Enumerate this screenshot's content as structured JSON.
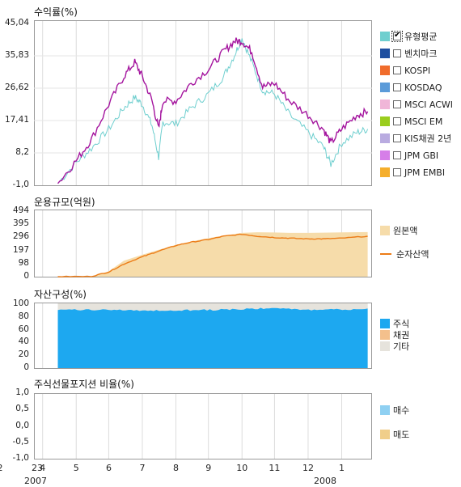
{
  "panels": {
    "returns": {
      "title": "수익률(%)"
    },
    "fund_size": {
      "title": "운용규모(억원)"
    },
    "asset": {
      "title": "자산구성(%)"
    },
    "futures": {
      "title": "주식선물포지션 비율(%)"
    }
  },
  "legend_returns": [
    {
      "label": "유형평균",
      "color": "#6fcfcf",
      "checked": true
    },
    {
      "label": "벤치마크",
      "color": "#1e4fa0",
      "checked": false
    },
    {
      "label": "KOSPI",
      "color": "#f06c2c",
      "checked": false
    },
    {
      "label": "KOSDAQ",
      "color": "#5b9bd9",
      "checked": false
    },
    {
      "label": "MSCI ACWI",
      "color": "#f0b6d8",
      "checked": false
    },
    {
      "label": "MSCI EM",
      "color": "#9acd1e",
      "checked": false
    },
    {
      "label": "KIS채권 2년",
      "color": "#b9abe0",
      "checked": false
    },
    {
      "label": "JPM GBI",
      "color": "#d67ee8",
      "checked": false
    },
    {
      "label": "JPM EMBI",
      "color": "#f5ae2c",
      "checked": false
    }
  ],
  "legend_size": [
    {
      "label": "원본액",
      "color": "#f6dcaa",
      "kind": "swatch"
    },
    {
      "label": "순자산액",
      "color": "#ec7c17",
      "kind": "line"
    }
  ],
  "legend_asset": [
    {
      "label": "주식",
      "color": "#1da8f0"
    },
    {
      "label": "채권",
      "color": "#f4c08c"
    },
    {
      "label": "기타",
      "color": "#e6e3dc"
    }
  ],
  "legend_futures": [
    {
      "label": "매수",
      "color": "#8fd0f2"
    },
    {
      "label": "매도",
      "color": "#f0ce8a"
    }
  ],
  "x_axis": {
    "ticks": [
      "23",
      "4",
      "5",
      "6",
      "7",
      "8",
      "9",
      "10",
      "11",
      "12",
      "1",
      "2"
    ],
    "years": [
      "2007",
      "2008"
    ]
  },
  "chart_data": [
    {
      "type": "line",
      "title": "수익률(%)",
      "y_ticks": [
        "45,04",
        "35,83",
        "26,62",
        "17,41",
        "8,2",
        "-1,0"
      ],
      "ylim": [
        -1.0,
        45.04
      ],
      "x": [
        "2007-05-15",
        "2007-06-01",
        "2007-06-15",
        "2007-07-01",
        "2007-07-15",
        "2007-07-25",
        "2007-08-01",
        "2007-08-10",
        "2007-08-16",
        "2007-08-20",
        "2007-09-01",
        "2007-09-15",
        "2007-10-01",
        "2007-10-15",
        "2007-10-25",
        "2007-11-01",
        "2007-11-10",
        "2007-11-20",
        "2007-12-01",
        "2007-12-15",
        "2008-01-01",
        "2008-01-15",
        "2008-01-22",
        "2008-02-01",
        "2008-02-15",
        "2008-02-25"
      ],
      "series": [
        {
          "name": "유형평균",
          "color": "#6fcfcf",
          "values": [
            -0.5,
            5.5,
            9.5,
            15.0,
            21.0,
            24.0,
            22.0,
            16.0,
            7.0,
            17.0,
            16.5,
            21.0,
            25.0,
            30.0,
            36.0,
            41.0,
            34.0,
            26.0,
            25.0,
            19.0,
            14.0,
            10.0,
            5.0,
            11.0,
            14.0,
            15.0
          ]
        },
        {
          "name": "",
          "color": "#a4149e",
          "values": [
            -0.5,
            6.0,
            12.0,
            22.0,
            30.0,
            34.0,
            30.0,
            23.0,
            15.0,
            23.0,
            23.0,
            28.0,
            32.0,
            37.0,
            40.0,
            40.0,
            37.0,
            27.0,
            28.0,
            23.0,
            19.0,
            15.0,
            11.0,
            15.0,
            19.0,
            20.0
          ]
        }
      ]
    },
    {
      "type": "area",
      "title": "운용규모(억원)",
      "y_ticks": [
        "494",
        "395",
        "296",
        "197",
        "98",
        "0"
      ],
      "ylim": [
        0,
        494
      ],
      "x": [
        "2007-05-15",
        "2007-06-15",
        "2007-07-01",
        "2007-07-15",
        "2007-08-01",
        "2007-08-15",
        "2007-09-01",
        "2007-09-15",
        "2007-10-01",
        "2007-10-15",
        "2007-11-01",
        "2007-11-15",
        "2007-12-01",
        "2007-12-15",
        "2008-01-01",
        "2008-01-15",
        "2008-02-01",
        "2008-02-25"
      ],
      "series": [
        {
          "name": "원본액",
          "color": "#f6dcaa",
          "values": [
            0,
            2,
            40,
            120,
            165,
            200,
            240,
            265,
            290,
            310,
            330,
            335,
            333,
            330,
            330,
            332,
            334,
            336
          ]
        },
        {
          "name": "순자산액",
          "color": "#ec7c17",
          "values": [
            0,
            2,
            35,
            95,
            150,
            190,
            235,
            260,
            280,
            305,
            320,
            305,
            295,
            290,
            285,
            285,
            290,
            305
          ]
        }
      ]
    },
    {
      "type": "bar",
      "title": "자산구성(%)",
      "y_ticks": [
        "100",
        "80",
        "60",
        "40",
        "20",
        "0"
      ],
      "ylim": [
        0,
        100
      ],
      "x": [
        "2007-05-15",
        "2007-07-01",
        "2007-08-15",
        "2007-10-01",
        "2007-11-15",
        "2008-01-01",
        "2008-02-25"
      ],
      "series": [
        {
          "name": "주식",
          "color": "#1da8f0",
          "values": [
            90,
            90,
            89,
            90,
            92,
            90,
            91
          ]
        },
        {
          "name": "채권",
          "color": "#f4c08c",
          "values": [
            0,
            0,
            0,
            0,
            0,
            0,
            0
          ]
        },
        {
          "name": "기타",
          "color": "#e6e3dc",
          "values": [
            10,
            10,
            11,
            10,
            8,
            10,
            9
          ]
        }
      ]
    },
    {
      "type": "bar",
      "title": "주식선물포지션 비율(%)",
      "y_ticks": [
        "1,0",
        "0,5",
        "0,0",
        "-0,5",
        "-1,0"
      ],
      "ylim": [
        -1.0,
        1.0
      ],
      "series": [
        {
          "name": "매수",
          "color": "#8fd0f2",
          "values": []
        },
        {
          "name": "매도",
          "color": "#f0ce8a",
          "values": []
        }
      ]
    }
  ]
}
